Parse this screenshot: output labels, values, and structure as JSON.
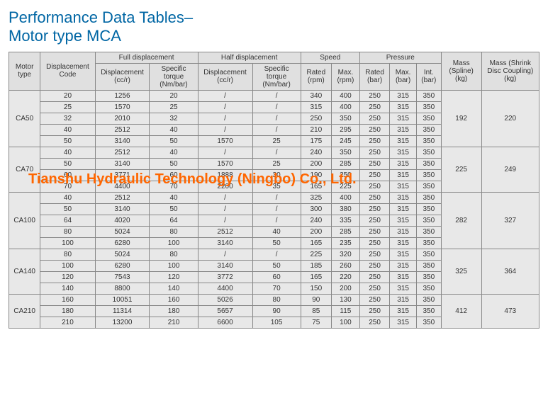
{
  "title_line1": "Performance Data Tables–",
  "title_line2": "Motor type MCA",
  "watermark": "Tianshu Hydraulic Technology (Ningbo) Co., Ltd.",
  "headers": {
    "motor_type": "Motor type",
    "disp_code": "Displacement Code",
    "full_disp": "Full displacement",
    "half_disp": "Half displacement",
    "speed": "Speed",
    "pressure": "Pressure",
    "mass_spline": "Mass (Spline) (kg)",
    "mass_shrink": "Mass (Shrink Disc Coupling) (kg)",
    "disp_ccr": "Displacement (cc/r)",
    "spec_torque": "Specific torque (Nm/bar)",
    "rated_rpm": "Rated (rpm)",
    "max_rpm": "Max. (rpm)",
    "rated_bar": "Rated (bar)",
    "max_bar": "Max. (bar)",
    "int_bar": "Int. (bar)"
  },
  "groups": [
    {
      "motor": "CA50",
      "mass_spline": "192",
      "mass_shrink": "220",
      "rows": [
        {
          "code": "20",
          "fd": "1256",
          "ft": "20",
          "hd": "/",
          "ht": "/",
          "rr": "340",
          "mr": "400",
          "rb": "250",
          "mb": "315",
          "ib": "350"
        },
        {
          "code": "25",
          "fd": "1570",
          "ft": "25",
          "hd": "/",
          "ht": "/",
          "rr": "315",
          "mr": "400",
          "rb": "250",
          "mb": "315",
          "ib": "350"
        },
        {
          "code": "32",
          "fd": "2010",
          "ft": "32",
          "hd": "/",
          "ht": "/",
          "rr": "250",
          "mr": "350",
          "rb": "250",
          "mb": "315",
          "ib": "350"
        },
        {
          "code": "40",
          "fd": "2512",
          "ft": "40",
          "hd": "/",
          "ht": "/",
          "rr": "210",
          "mr": "295",
          "rb": "250",
          "mb": "315",
          "ib": "350"
        },
        {
          "code": "50",
          "fd": "3140",
          "ft": "50",
          "hd": "1570",
          "ht": "25",
          "rr": "175",
          "mr": "245",
          "rb": "250",
          "mb": "315",
          "ib": "350"
        }
      ]
    },
    {
      "motor": "CA70",
      "mass_spline": "225",
      "mass_shrink": "249",
      "rows": [
        {
          "code": "40",
          "fd": "2512",
          "ft": "40",
          "hd": "/",
          "ht": "/",
          "rr": "240",
          "mr": "350",
          "rb": "250",
          "mb": "315",
          "ib": "350"
        },
        {
          "code": "50",
          "fd": "3140",
          "ft": "50",
          "hd": "1570",
          "ht": "25",
          "rr": "200",
          "mr": "285",
          "rb": "250",
          "mb": "315",
          "ib": "350"
        },
        {
          "code": "60",
          "fd": "3771",
          "ft": "60",
          "hd": "1888",
          "ht": "30",
          "rr": "190",
          "mr": "250",
          "rb": "250",
          "mb": "315",
          "ib": "350"
        },
        {
          "code": "70",
          "fd": "4400",
          "ft": "70",
          "hd": "2200",
          "ht": "35",
          "rr": "165",
          "mr": "225",
          "rb": "250",
          "mb": "315",
          "ib": "350"
        }
      ]
    },
    {
      "motor": "CA100",
      "mass_spline": "282",
      "mass_shrink": "327",
      "rows": [
        {
          "code": "40",
          "fd": "2512",
          "ft": "40",
          "hd": "/",
          "ht": "/",
          "rr": "325",
          "mr": "400",
          "rb": "250",
          "mb": "315",
          "ib": "350"
        },
        {
          "code": "50",
          "fd": "3140",
          "ft": "50",
          "hd": "/",
          "ht": "/",
          "rr": "300",
          "mr": "380",
          "rb": "250",
          "mb": "315",
          "ib": "350"
        },
        {
          "code": "64",
          "fd": "4020",
          "ft": "64",
          "hd": "/",
          "ht": "/",
          "rr": "240",
          "mr": "335",
          "rb": "250",
          "mb": "315",
          "ib": "350"
        },
        {
          "code": "80",
          "fd": "5024",
          "ft": "80",
          "hd": "2512",
          "ht": "40",
          "rr": "200",
          "mr": "285",
          "rb": "250",
          "mb": "315",
          "ib": "350"
        },
        {
          "code": "100",
          "fd": "6280",
          "ft": "100",
          "hd": "3140",
          "ht": "50",
          "rr": "165",
          "mr": "235",
          "rb": "250",
          "mb": "315",
          "ib": "350"
        }
      ]
    },
    {
      "motor": "CA140",
      "mass_spline": "325",
      "mass_shrink": "364",
      "rows": [
        {
          "code": "80",
          "fd": "5024",
          "ft": "80",
          "hd": "/",
          "ht": "/",
          "rr": "225",
          "mr": "320",
          "rb": "250",
          "mb": "315",
          "ib": "350"
        },
        {
          "code": "100",
          "fd": "6280",
          "ft": "100",
          "hd": "3140",
          "ht": "50",
          "rr": "185",
          "mr": "260",
          "rb": "250",
          "mb": "315",
          "ib": "350"
        },
        {
          "code": "120",
          "fd": "7543",
          "ft": "120",
          "hd": "3772",
          "ht": "60",
          "rr": "165",
          "mr": "220",
          "rb": "250",
          "mb": "315",
          "ib": "350"
        },
        {
          "code": "140",
          "fd": "8800",
          "ft": "140",
          "hd": "4400",
          "ht": "70",
          "rr": "150",
          "mr": "200",
          "rb": "250",
          "mb": "315",
          "ib": "350"
        }
      ]
    },
    {
      "motor": "CA210",
      "mass_spline": "412",
      "mass_shrink": "473",
      "rows": [
        {
          "code": "160",
          "fd": "10051",
          "ft": "160",
          "hd": "5026",
          "ht": "80",
          "rr": "90",
          "mr": "130",
          "rb": "250",
          "mb": "315",
          "ib": "350"
        },
        {
          "code": "180",
          "fd": "11314",
          "ft": "180",
          "hd": "5657",
          "ht": "90",
          "rr": "85",
          "mr": "115",
          "rb": "250",
          "mb": "315",
          "ib": "350"
        },
        {
          "code": "210",
          "fd": "13200",
          "ft": "210",
          "hd": "6600",
          "ht": "105",
          "rr": "75",
          "mr": "100",
          "rb": "250",
          "mb": "315",
          "ib": "350"
        }
      ]
    }
  ]
}
